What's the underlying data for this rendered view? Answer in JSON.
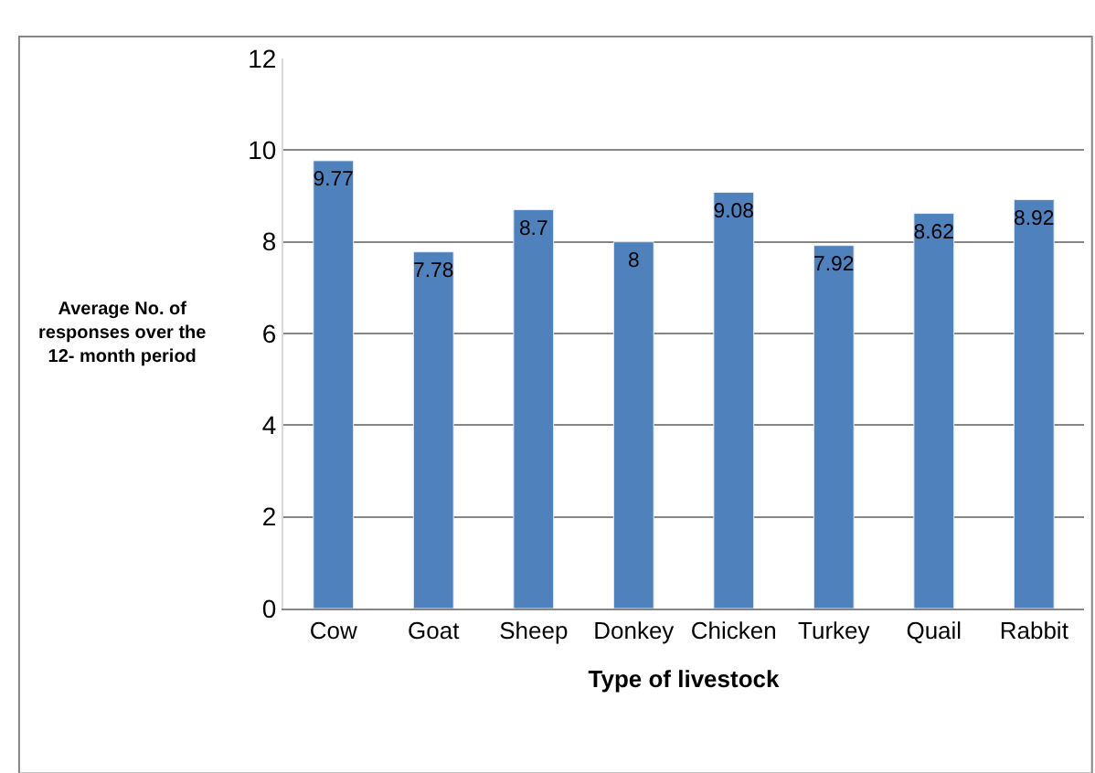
{
  "chart_data": {
    "type": "bar",
    "xlabel": "Type of livestock",
    "ylabel": "Average No. of responses over the 12- month period",
    "categories": [
      "Cow",
      "Goat",
      "Sheep",
      "Donkey",
      "Chicken",
      "Turkey",
      "Quail",
      "Rabbit"
    ],
    "values": [
      9.77,
      7.78,
      8.7,
      8,
      9.08,
      7.92,
      8.62,
      8.92
    ],
    "color": "#4f81bd",
    "ylim": [
      0,
      12
    ],
    "yticks": [
      0,
      2,
      4,
      6,
      8,
      10,
      12
    ],
    "grid": "y",
    "data_labels": true,
    "legend": false
  }
}
